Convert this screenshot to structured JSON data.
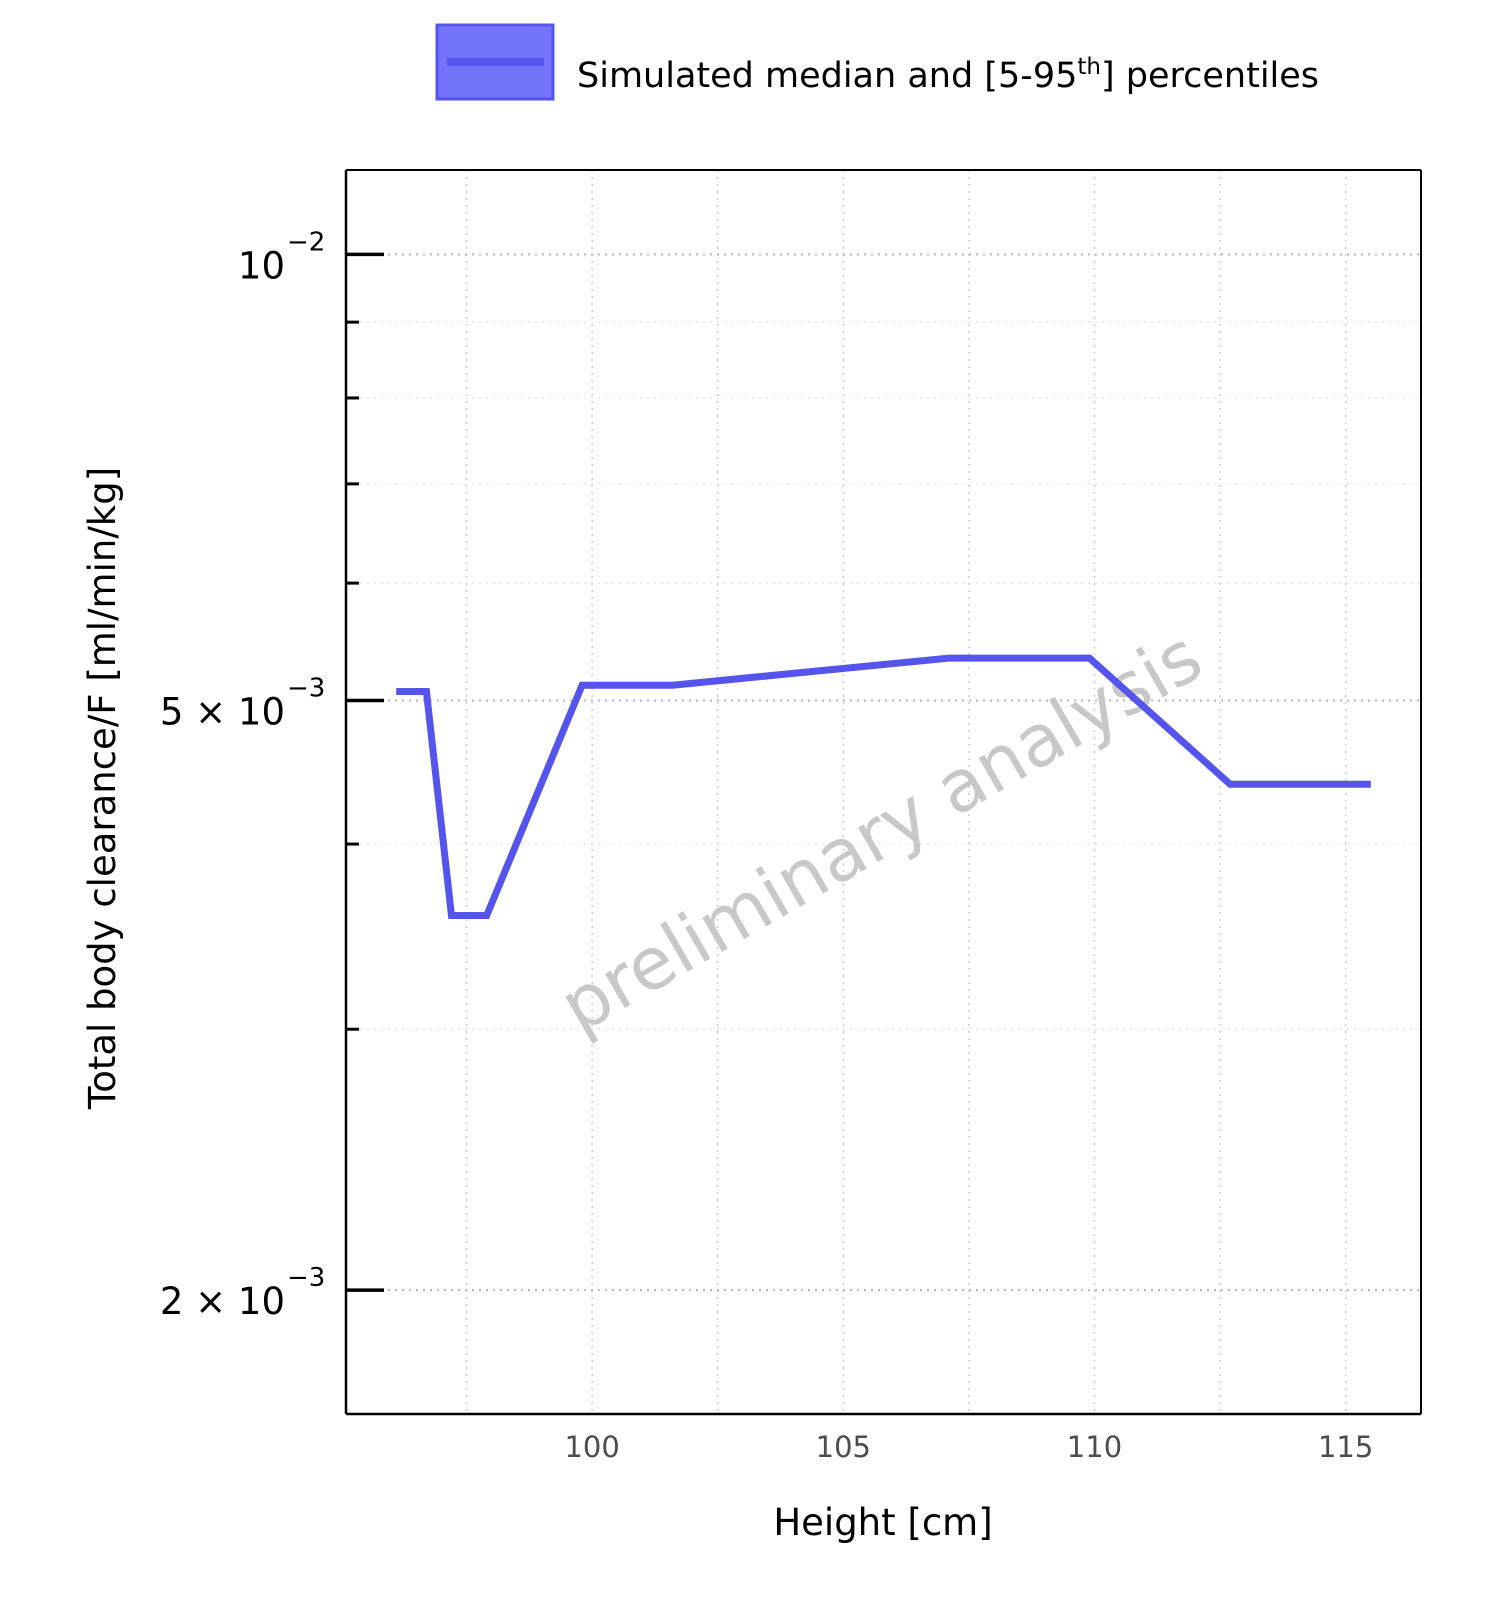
{
  "chart_data": {
    "type": "line",
    "title": "",
    "xlabel": "Height [cm]",
    "ylabel": "Total body clearance/F [ml/min/kg]",
    "y_scale": "log",
    "xlim": [
      95.1,
      116.5
    ],
    "ylim": [
      0.00165,
      0.0114
    ],
    "grid": true,
    "legend_position": "top",
    "x_ticks": [
      {
        "value": 100,
        "label": "100"
      },
      {
        "value": 105,
        "label": "105"
      },
      {
        "value": 110,
        "label": "110"
      },
      {
        "value": 115,
        "label": "115"
      }
    ],
    "y_major_ticks": [
      {
        "value": 0.01,
        "base": "10",
        "exp": "−2"
      },
      {
        "value": 0.005,
        "base": "5 × 10",
        "exp": "−3"
      },
      {
        "value": 0.002,
        "base": "2 × 10",
        "exp": "−3"
      }
    ],
    "y_minor_ticks": [
      0.003,
      0.004,
      0.006,
      0.007,
      0.008,
      0.009
    ],
    "series": [
      {
        "name": "Simulated median and [5-95th] percentiles",
        "legend_main": "Simulated median and [5-95",
        "legend_sup": "th",
        "legend_tail": "] percentiles",
        "color": "#5555ee",
        "x": [
          96.1,
          96.7,
          97.2,
          97.9,
          99.8,
          101.6,
          107.1,
          109.9,
          112.7,
          115.5
        ],
        "y": [
          0.00507,
          0.00507,
          0.00358,
          0.00358,
          0.00512,
          0.00512,
          0.00534,
          0.00534,
          0.00439,
          0.00439
        ]
      }
    ],
    "annotations": [
      {
        "text": "preliminary analysis",
        "style": "watermark"
      }
    ]
  },
  "colors": {
    "series": "#5555ee",
    "legend_fill": "#7474fa",
    "grid": "#cccccc",
    "watermark": "#c8c8c8"
  }
}
